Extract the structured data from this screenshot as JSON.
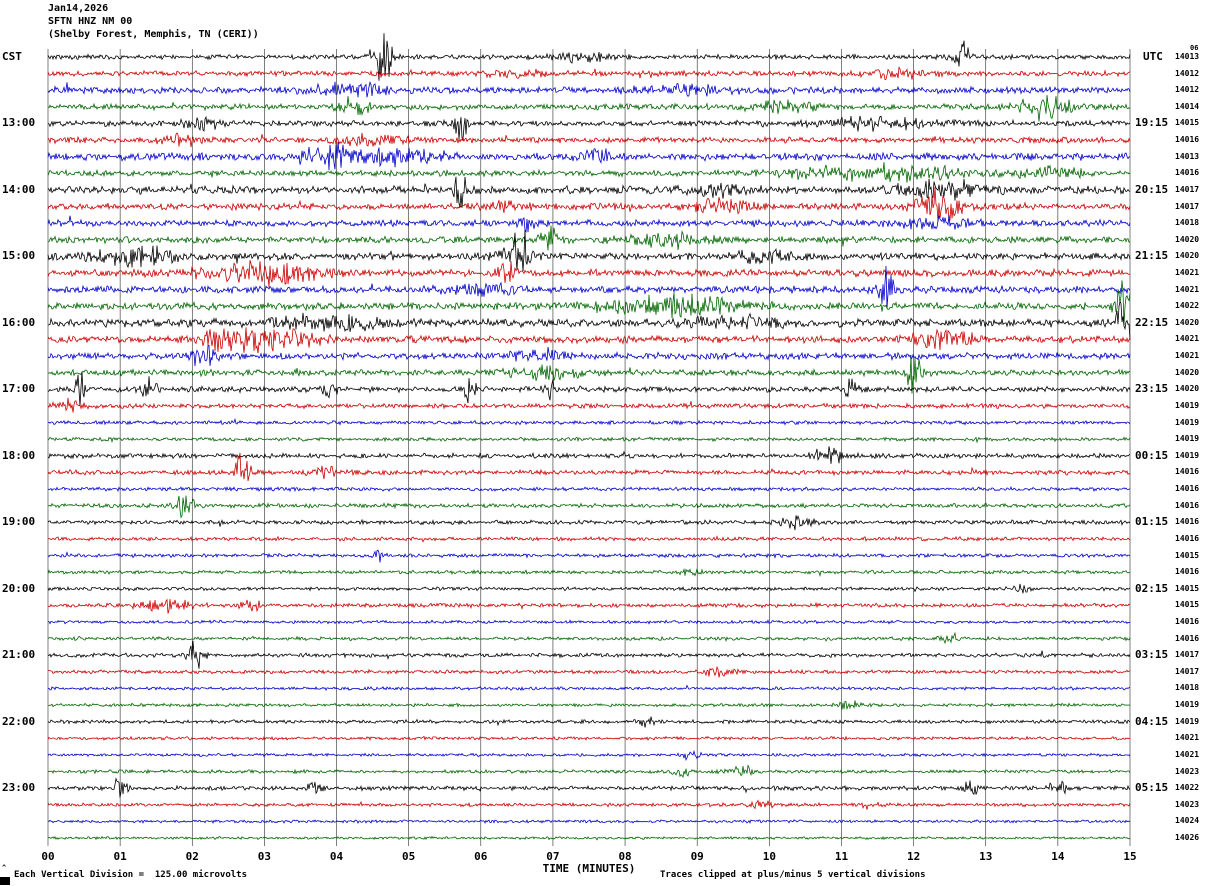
{
  "header": {
    "date": "Jan14,2026",
    "station": "SFTN HNZ NM 00",
    "location": "(Shelby Forest, Memphis, TN (CERI))",
    "timezones": {
      "left": "CST",
      "right": "UTC"
    },
    "top_right_small": "06"
  },
  "axis": {
    "x_ticks": [
      "00",
      "01",
      "02",
      "03",
      "04",
      "05",
      "06",
      "07",
      "08",
      "09",
      "10",
      "11",
      "12",
      "13",
      "14",
      "15"
    ]
  },
  "footer": {
    "xlabel": "TIME (MINUTES)",
    "scale_note": "Each Vertical Division =  125.00 microvolts",
    "clip_note": "Traces clipped at plus/minus 5 vertical divisions"
  },
  "chart_data": {
    "type": "line",
    "title": "SFTN HNZ NM 00 (Shelby Forest, Memphis, TN (CERI)) Jan14,2026",
    "xlabel": "TIME (MINUTES)",
    "x_range": [
      0,
      15
    ],
    "minutes_per_line": 15,
    "grid": true,
    "microvolts_per_division": 125.0,
    "clip_divisions": 5,
    "colors_cycle": [
      "#000000",
      "#cc0000",
      "#0000cc",
      "#006600"
    ],
    "rows": [
      {
        "left": "",
        "right": "",
        "id": "14013",
        "noise": 1.8,
        "events": [
          [
            4.65,
            22,
            0.08
          ],
          [
            12.65,
            15,
            0.08
          ],
          [
            7.4,
            3,
            0.3
          ]
        ]
      },
      {
        "left": "",
        "right": "",
        "id": "14012",
        "noise": 2.0,
        "events": [
          [
            6.5,
            3,
            0.25
          ],
          [
            11.8,
            3,
            0.3
          ]
        ]
      },
      {
        "left": "",
        "right": "",
        "id": "14012",
        "noise": 2.5,
        "events": [
          [
            4.2,
            4,
            0.4
          ],
          [
            9.0,
            3,
            0.5
          ]
        ]
      },
      {
        "left": "",
        "right": "",
        "id": "14014",
        "noise": 2.2,
        "events": [
          [
            4.25,
            7,
            0.15
          ],
          [
            13.8,
            9,
            0.25
          ],
          [
            10.2,
            4,
            0.3
          ]
        ]
      },
      {
        "left": "13:00",
        "right": "19:15",
        "id": "14015",
        "noise": 2.2,
        "events": [
          [
            5.72,
            17,
            0.06
          ],
          [
            11.6,
            5,
            0.5
          ],
          [
            2.1,
            4,
            0.2
          ]
        ]
      },
      {
        "left": "",
        "right": "",
        "id": "14016",
        "noise": 2.2,
        "events": [
          [
            1.85,
            5,
            0.2
          ],
          [
            4.4,
            4,
            0.3
          ]
        ]
      },
      {
        "left": "",
        "right": "",
        "id": "14013",
        "noise": 2.7,
        "events": [
          [
            3.9,
            8,
            0.3
          ],
          [
            4.9,
            5,
            0.4
          ],
          [
            7.6,
            4,
            0.2
          ]
        ]
      },
      {
        "left": "",
        "right": "",
        "id": "14016",
        "noise": 2.2,
        "events": [
          [
            11.5,
            6,
            0.8
          ],
          [
            14.0,
            4,
            0.3
          ]
        ]
      },
      {
        "left": "14:00",
        "right": "20:15",
        "id": "14017",
        "noise": 2.9,
        "events": [
          [
            5.72,
            25,
            0.05
          ],
          [
            12.4,
            7,
            0.4
          ],
          [
            9.3,
            4,
            0.3
          ]
        ]
      },
      {
        "left": "",
        "right": "",
        "id": "14017",
        "noise": 2.5,
        "events": [
          [
            12.35,
            13,
            0.2
          ],
          [
            9.4,
            5,
            0.3
          ],
          [
            6.3,
            4,
            0.2
          ]
        ]
      },
      {
        "left": "",
        "right": "",
        "id": "14018",
        "noise": 2.5,
        "events": [
          [
            6.6,
            9,
            0.08
          ],
          [
            12.3,
            5,
            0.3
          ]
        ]
      },
      {
        "left": "",
        "right": "",
        "id": "14020",
        "noise": 2.5,
        "events": [
          [
            6.95,
            11,
            0.08
          ],
          [
            8.6,
            5,
            0.4
          ]
        ]
      },
      {
        "left": "15:00",
        "right": "21:15",
        "id": "14020",
        "noise": 2.7,
        "events": [
          [
            1.2,
            7,
            0.4
          ],
          [
            6.5,
            13,
            0.15
          ],
          [
            9.9,
            4,
            0.3
          ]
        ]
      },
      {
        "left": "",
        "right": "",
        "id": "14021",
        "noise": 2.7,
        "events": [
          [
            3.0,
            7,
            0.6
          ],
          [
            6.35,
            9,
            0.08
          ]
        ]
      },
      {
        "left": "",
        "right": "",
        "id": "14021",
        "noise": 2.7,
        "events": [
          [
            11.6,
            15,
            0.08
          ],
          [
            6.0,
            4,
            0.3
          ]
        ]
      },
      {
        "left": "",
        "right": "",
        "id": "14022",
        "noise": 2.7,
        "events": [
          [
            8.6,
            7,
            0.7
          ],
          [
            14.9,
            16,
            0.08
          ]
        ]
      },
      {
        "left": "16:00",
        "right": "22:15",
        "id": "14020",
        "noise": 3.1,
        "events": [
          [
            14.93,
            28,
            0.07
          ],
          [
            3.9,
            5,
            0.5
          ],
          [
            9.5,
            4,
            0.4
          ]
        ]
      },
      {
        "left": "",
        "right": "",
        "id": "14021",
        "noise": 2.7,
        "events": [
          [
            2.6,
            9,
            0.3
          ],
          [
            3.3,
            7,
            0.3
          ],
          [
            12.4,
            6,
            0.3
          ]
        ]
      },
      {
        "left": "",
        "right": "",
        "id": "14021",
        "noise": 2.5,
        "events": [
          [
            2.15,
            9,
            0.12
          ],
          [
            6.8,
            4,
            0.3
          ]
        ]
      },
      {
        "left": "",
        "right": "",
        "id": "14020",
        "noise": 2.3,
        "events": [
          [
            12.0,
            15,
            0.08
          ],
          [
            6.9,
            5,
            0.3
          ]
        ]
      },
      {
        "left": "17:00",
        "right": "23:15",
        "id": "14020",
        "noise": 2.1,
        "events": [
          [
            0.45,
            13,
            0.06
          ],
          [
            1.4,
            11,
            0.06
          ],
          [
            5.85,
            9,
            0.06
          ],
          [
            6.95,
            9,
            0.06
          ],
          [
            11.1,
            7,
            0.08
          ],
          [
            3.9,
            5,
            0.08
          ]
        ]
      },
      {
        "left": "",
        "right": "",
        "id": "14019",
        "noise": 1.8,
        "events": [
          [
            0.3,
            4,
            0.15
          ]
        ]
      },
      {
        "left": "",
        "right": "",
        "id": "14019",
        "noise": 1.4,
        "events": []
      },
      {
        "left": "",
        "right": "",
        "id": "14019",
        "noise": 1.4,
        "events": []
      },
      {
        "left": "18:00",
        "right": "00:15",
        "id": "14019",
        "noise": 1.8,
        "events": [
          [
            10.8,
            6,
            0.15
          ]
        ]
      },
      {
        "left": "",
        "right": "",
        "id": "14016",
        "noise": 1.8,
        "events": [
          [
            2.7,
            17,
            0.07
          ],
          [
            3.8,
            4,
            0.15
          ]
        ]
      },
      {
        "left": "",
        "right": "",
        "id": "14016",
        "noise": 1.4,
        "events": []
      },
      {
        "left": "",
        "right": "",
        "id": "14016",
        "noise": 1.6,
        "events": [
          [
            1.9,
            15,
            0.07
          ]
        ]
      },
      {
        "left": "19:00",
        "right": "01:15",
        "id": "14016",
        "noise": 1.6,
        "events": [
          [
            10.4,
            4,
            0.2
          ]
        ]
      },
      {
        "left": "",
        "right": "",
        "id": "14016",
        "noise": 1.4,
        "events": []
      },
      {
        "left": "",
        "right": "",
        "id": "14015",
        "noise": 1.4,
        "events": [
          [
            4.6,
            7,
            0.05
          ]
        ]
      },
      {
        "left": "",
        "right": "",
        "id": "14016",
        "noise": 1.3,
        "events": [
          [
            8.9,
            3,
            0.1
          ]
        ]
      },
      {
        "left": "20:00",
        "right": "02:15",
        "id": "14015",
        "noise": 1.3,
        "events": [
          [
            13.5,
            3,
            0.1
          ]
        ]
      },
      {
        "left": "",
        "right": "",
        "id": "14015",
        "noise": 1.5,
        "events": [
          [
            1.6,
            5,
            0.25
          ],
          [
            2.8,
            4,
            0.1
          ]
        ]
      },
      {
        "left": "",
        "right": "",
        "id": "14016",
        "noise": 1.2,
        "events": []
      },
      {
        "left": "",
        "right": "",
        "id": "14016",
        "noise": 1.3,
        "events": [
          [
            12.5,
            4,
            0.08
          ]
        ]
      },
      {
        "left": "21:00",
        "right": "03:15",
        "id": "14017",
        "noise": 1.5,
        "events": [
          [
            2.05,
            15,
            0.07
          ]
        ]
      },
      {
        "left": "",
        "right": "",
        "id": "14017",
        "noise": 1.4,
        "events": [
          [
            9.3,
            4,
            0.15
          ]
        ]
      },
      {
        "left": "",
        "right": "",
        "id": "14018",
        "noise": 1.2,
        "events": []
      },
      {
        "left": "",
        "right": "",
        "id": "14019",
        "noise": 1.2,
        "events": [
          [
            11.1,
            3,
            0.1
          ]
        ]
      },
      {
        "left": "22:00",
        "right": "04:15",
        "id": "14019",
        "noise": 1.4,
        "events": [
          [
            8.3,
            3,
            0.1
          ]
        ]
      },
      {
        "left": "",
        "right": "",
        "id": "14021",
        "noise": 1.2,
        "events": []
      },
      {
        "left": "",
        "right": "",
        "id": "14021",
        "noise": 1.1,
        "events": [
          [
            8.9,
            3,
            0.08
          ]
        ]
      },
      {
        "left": "",
        "right": "",
        "id": "14023",
        "noise": 1.3,
        "events": [
          [
            9.6,
            5,
            0.1
          ],
          [
            8.8,
            3,
            0.1
          ]
        ]
      },
      {
        "left": "23:00",
        "right": "05:15",
        "id": "14022",
        "noise": 1.6,
        "events": [
          [
            1.0,
            9,
            0.06
          ],
          [
            3.7,
            7,
            0.06
          ],
          [
            12.8,
            6,
            0.08
          ],
          [
            14.0,
            5,
            0.08
          ]
        ]
      },
      {
        "left": "",
        "right": "",
        "id": "14023",
        "noise": 1.3,
        "events": [
          [
            9.9,
            3,
            0.1
          ],
          [
            11.3,
            3,
            0.1
          ]
        ]
      },
      {
        "left": "",
        "right": "",
        "id": "14024",
        "noise": 1.1,
        "events": []
      },
      {
        "left": "",
        "right": "",
        "id": "14026",
        "noise": 1.0,
        "events": []
      }
    ]
  }
}
